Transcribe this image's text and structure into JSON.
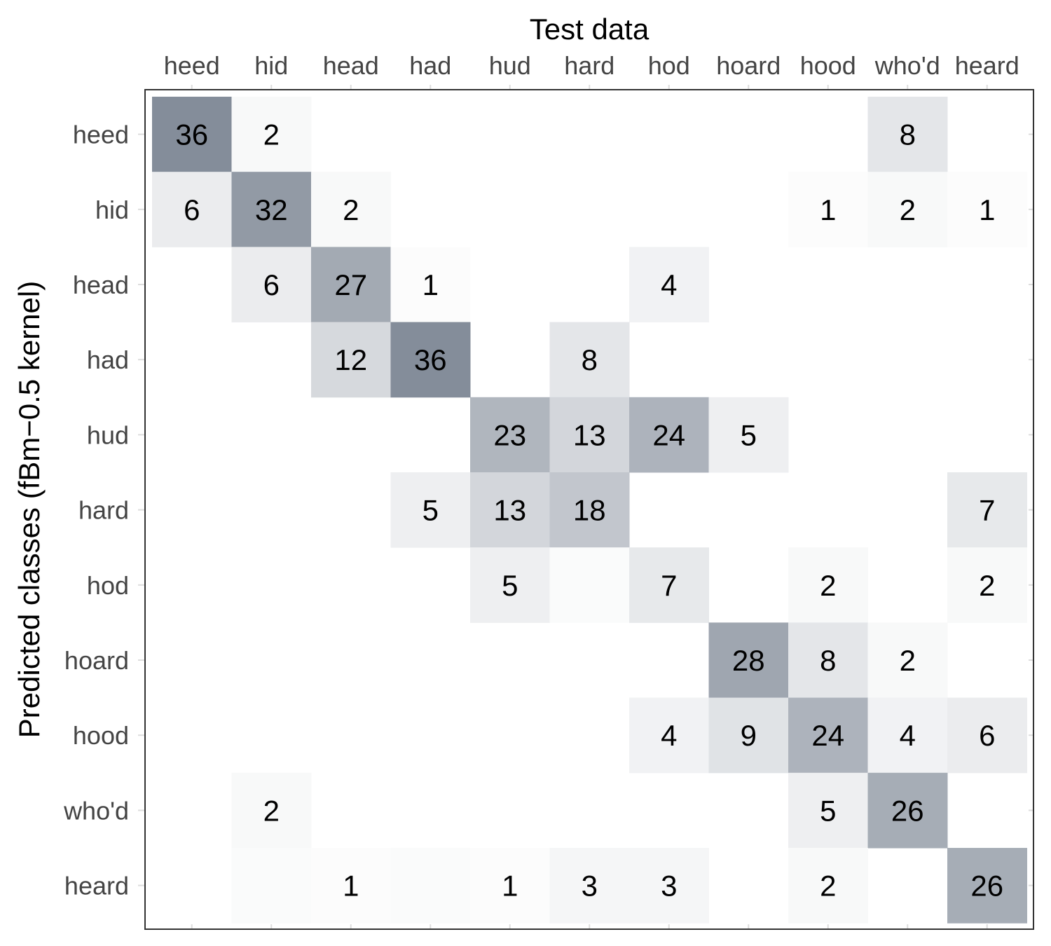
{
  "chart_data": {
    "type": "heatmap",
    "xlabel": "Test data",
    "ylabel": "Predicted classes (fBm−0.5 kernel)",
    "x_categories": [
      "heed",
      "hid",
      "head",
      "had",
      "hud",
      "hard",
      "hod",
      "hoard",
      "hood",
      "who'd",
      "heard"
    ],
    "y_categories": [
      "heed",
      "hid",
      "head",
      "had",
      "hud",
      "hard",
      "hod",
      "hoard",
      "hood",
      "who'd",
      "heard"
    ],
    "matrix": [
      [
        36,
        2,
        null,
        null,
        null,
        null,
        null,
        null,
        null,
        8,
        null
      ],
      [
        6,
        32,
        2,
        null,
        null,
        null,
        null,
        null,
        1,
        2,
        1
      ],
      [
        null,
        6,
        27,
        1,
        null,
        null,
        4,
        null,
        null,
        null,
        null
      ],
      [
        null,
        null,
        12,
        36,
        null,
        8,
        null,
        null,
        null,
        null,
        null
      ],
      [
        null,
        null,
        null,
        null,
        23,
        13,
        24,
        5,
        null,
        null,
        null
      ],
      [
        null,
        null,
        null,
        5,
        13,
        18,
        null,
        null,
        null,
        null,
        7
      ],
      [
        null,
        null,
        null,
        null,
        5,
        null,
        7,
        null,
        2,
        null,
        2
      ],
      [
        null,
        null,
        null,
        null,
        null,
        null,
        null,
        28,
        8,
        2,
        null
      ],
      [
        null,
        null,
        null,
        null,
        null,
        null,
        4,
        9,
        24,
        4,
        6
      ],
      [
        null,
        2,
        null,
        null,
        null,
        null,
        null,
        null,
        5,
        26,
        null
      ],
      [
        null,
        null,
        1,
        null,
        1,
        3,
        3,
        null,
        2,
        null,
        26
      ]
    ],
    "faint_cells": [
      [
        1,
        9
      ],
      [
        1,
        10
      ],
      [
        2,
        3
      ],
      [
        2,
        2
      ],
      [
        5,
        4
      ],
      [
        5,
        5
      ],
      [
        6,
        5
      ],
      [
        6,
        6
      ],
      [
        10,
        1
      ],
      [
        10,
        2
      ],
      [
        10,
        3
      ],
      [
        10,
        4
      ],
      [
        10,
        5
      ],
      [
        10,
        6
      ],
      [
        10,
        8
      ],
      [
        9,
        8
      ]
    ],
    "color_scale": {
      "low": "#ffffff",
      "high": "#848d9a",
      "max_value": 36
    },
    "grid": false,
    "legend": "none"
  }
}
